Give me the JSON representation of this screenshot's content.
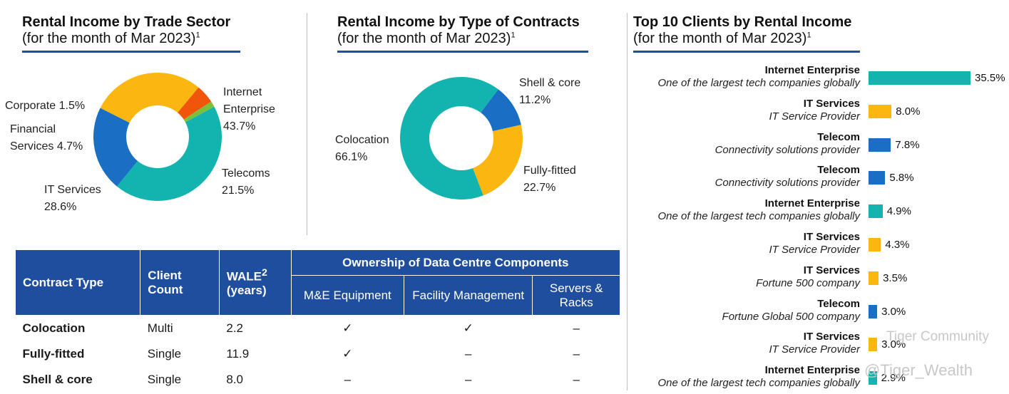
{
  "colors": {
    "teal": "#13b4b0",
    "blue": "#1a6fc4",
    "yellow": "#fbb70f",
    "orange": "#f0550a",
    "green": "#7bbf3a",
    "navy": "#1f4e9e"
  },
  "chart_data": [
    {
      "type": "pie",
      "title": "Rental Income by Trade Sector",
      "subtitle": "(for the month of Mar 2023)",
      "footnote": "1",
      "slices": [
        {
          "label_line1": "Internet",
          "label_line2": "Enterprise",
          "pct_text": "43.7%",
          "value": 43.7,
          "color": "#13b4b0"
        },
        {
          "label_line1": "Telecoms",
          "label_line2": "",
          "pct_text": "21.5%",
          "value": 21.5,
          "color": "#1a6fc4"
        },
        {
          "label_line1": "IT Services",
          "label_line2": "",
          "pct_text": "28.6%",
          "value": 28.6,
          "color": "#fbb70f"
        },
        {
          "label_line1": "Financial",
          "label_line2": "Services",
          "pct_text": "4.7%",
          "value": 4.7,
          "color": "#f0550a"
        },
        {
          "label_line1": "Corporate",
          "label_line2": "",
          "pct_text": "1.5%",
          "value": 1.5,
          "color": "#7bbf3a"
        }
      ]
    },
    {
      "type": "pie",
      "title": "Rental Income by Type of Contracts",
      "subtitle": "(for the month of Mar 2023)",
      "footnote": "1",
      "slices": [
        {
          "label": "Shell & core",
          "pct_text": "11.2%",
          "value": 11.2,
          "color": "#1a6fc4"
        },
        {
          "label": "Fully-fitted",
          "pct_text": "22.7%",
          "value": 22.7,
          "color": "#fbb70f"
        },
        {
          "label": "Colocation",
          "pct_text": "66.1%",
          "value": 66.1,
          "color": "#13b4b0"
        }
      ]
    },
    {
      "type": "bar",
      "orientation": "horizontal",
      "title": "Top 10 Clients by Rental Income",
      "subtitle": "(for the month of Mar 2023)",
      "footnote": "1",
      "xlim": [
        0,
        35.5
      ],
      "bars": [
        {
          "sector": "Internet Enterprise",
          "desc": "One of the largest tech companies globally",
          "value": 35.5,
          "value_text": "35.5%",
          "color": "#13b4b0"
        },
        {
          "sector": "IT Services",
          "desc": "IT Service Provider",
          "value": 8.0,
          "value_text": "8.0%",
          "color": "#fbb70f"
        },
        {
          "sector": "Telecom",
          "desc": "Connectivity solutions provider",
          "value": 7.8,
          "value_text": "7.8%",
          "color": "#1a6fc4"
        },
        {
          "sector": "Telecom",
          "desc": "Connectivity solutions provider",
          "value": 5.8,
          "value_text": "5.8%",
          "color": "#1a6fc4"
        },
        {
          "sector": "Internet Enterprise",
          "desc": "One of the largest tech companies globally",
          "value": 4.9,
          "value_text": "4.9%",
          "color": "#13b4b0"
        },
        {
          "sector": "IT Services",
          "desc": "IT Service Provider",
          "value": 4.3,
          "value_text": "4.3%",
          "color": "#fbb70f"
        },
        {
          "sector": "IT Services",
          "desc": "Fortune 500 company",
          "value": 3.5,
          "value_text": "3.5%",
          "color": "#fbb70f"
        },
        {
          "sector": "Telecom",
          "desc": "Fortune Global 500 company",
          "value": 3.0,
          "value_text": "3.0%",
          "color": "#1a6fc4"
        },
        {
          "sector": "IT Services",
          "desc": "IT Service Provider",
          "value": 3.0,
          "value_text": "3.0%",
          "color": "#fbb70f"
        },
        {
          "sector": "Internet Enterprise",
          "desc": "One of the largest tech companies globally",
          "value": 2.9,
          "value_text": "2.9%",
          "color": "#13b4b0"
        }
      ]
    }
  ],
  "table": {
    "headers": {
      "contract_type": "Contract Type",
      "client_count": "Client Count",
      "wale": "WALE",
      "wale_sup": "2",
      "wale_unit": "(years)",
      "group": "Ownership of Data Centre Components",
      "me": "M&E Equipment",
      "facility": "Facility Management",
      "servers": "Servers & Racks"
    },
    "rows": [
      {
        "type": "Colocation",
        "count": "Multi",
        "wale": "2.2",
        "me": "✓",
        "facility": "✓",
        "servers": "–"
      },
      {
        "type": "Fully-fitted",
        "count": "Single",
        "wale": "11.9",
        "me": "✓",
        "facility": "–",
        "servers": "–"
      },
      {
        "type": "Shell & core",
        "count": "Single",
        "wale": "8.0",
        "me": "–",
        "facility": "–",
        "servers": "–"
      }
    ]
  },
  "watermark": {
    "line1": "Tiger Community",
    "line2": "@Tiger_Wealth"
  }
}
